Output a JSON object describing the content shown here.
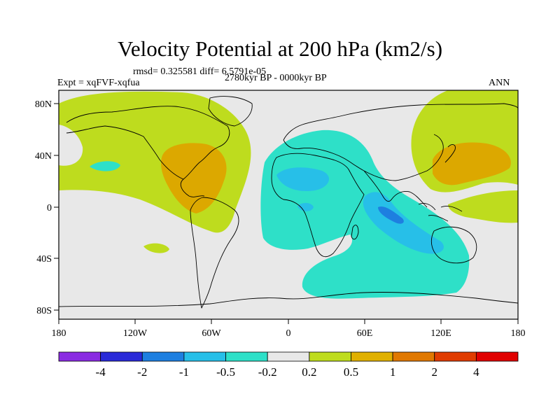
{
  "title": "Velocity Potential at 200 hPa (km2/s)",
  "stats_line": "rmsd= 0.325581 diff= 6.5791e-05",
  "expt_label": "Expt = xqFVF-xqfua",
  "period_label": "2780kyr BP - 0000kyr BP",
  "season_label": "ANN",
  "y_ticks": [
    "80N",
    "40N",
    "0",
    "40S",
    "80S"
  ],
  "x_ticks": [
    "180",
    "120W",
    "60W",
    "0",
    "60E",
    "120E",
    "180"
  ],
  "colorbar": {
    "labels": [
      "-4",
      "-2",
      "-1",
      "-0.5",
      "-0.2",
      "0.2",
      "0.5",
      "1",
      "2",
      "4"
    ],
    "colors": [
      "#8a2be2",
      "#2a2ad8",
      "#1e7fe0",
      "#27bfe8",
      "#2ee0c8",
      "#e8e8e8",
      "#bedc1e",
      "#e0b000",
      "#e07800",
      "#e03c00",
      "#e00000"
    ]
  },
  "colors": {
    "neutral": "#e8e8e8",
    "pos_weak": "#bedc1e",
    "pos_mid": "#dca800",
    "neg_weak": "#2ee0c8",
    "neg_mid": "#27bfe8",
    "neg_strong": "#1e7fe0"
  }
}
